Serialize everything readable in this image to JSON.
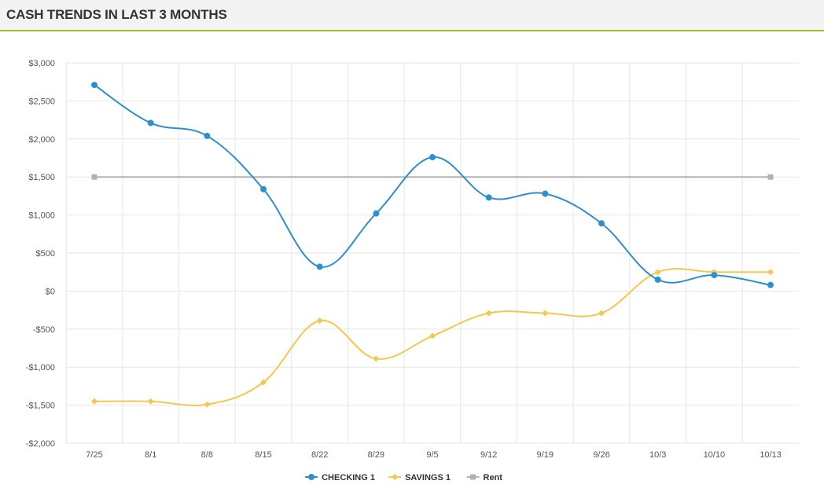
{
  "header": {
    "title": "CASH TRENDS IN LAST 3 MONTHS"
  },
  "colors": {
    "accent": "#9ebc2f",
    "checking": "#2e8fcf",
    "savings": "#f2c94c",
    "rent": "#b3b3b3",
    "grid": "#e6e6e6"
  },
  "chart_data": {
    "type": "line",
    "title": "",
    "xlabel": "",
    "ylabel": "",
    "categories": [
      "7/25",
      "8/1",
      "8/8",
      "8/15",
      "8/22",
      "8/29",
      "9/5",
      "9/12",
      "9/19",
      "9/26",
      "10/3",
      "10/10",
      "10/13"
    ],
    "ylim": [
      -2000,
      3000
    ],
    "yticks": [
      3000,
      2500,
      2000,
      1500,
      1000,
      500,
      0,
      -500,
      -1000,
      -1500,
      -2000
    ],
    "ytick_labels": [
      "$3,000",
      "$2,500",
      "$2,000",
      "$1,500",
      "$1,000",
      "$500",
      "$0",
      "-$500",
      "-$1,000",
      "-$1,500",
      "-$2,000"
    ],
    "grid": true,
    "legend_position": "bottom-center",
    "series": [
      {
        "name": "CHECKING 1",
        "color": "#2e8fcf",
        "marker": "circle",
        "smooth": true,
        "values": [
          2710,
          2210,
          2040,
          1340,
          320,
          1020,
          1760,
          1230,
          1280,
          890,
          150,
          210,
          80
        ]
      },
      {
        "name": "SAVINGS 1",
        "color": "#f2c94c",
        "marker": "diamond",
        "smooth": true,
        "values": [
          -1450,
          -1450,
          -1490,
          -1200,
          -390,
          -890,
          -590,
          -290,
          -290,
          -290,
          250,
          250,
          250
        ]
      },
      {
        "name": "Rent",
        "color": "#b3b3b3",
        "marker": "square",
        "smooth": false,
        "values": [
          1500,
          null,
          null,
          null,
          null,
          null,
          null,
          null,
          null,
          null,
          null,
          null,
          1500
        ]
      }
    ]
  }
}
